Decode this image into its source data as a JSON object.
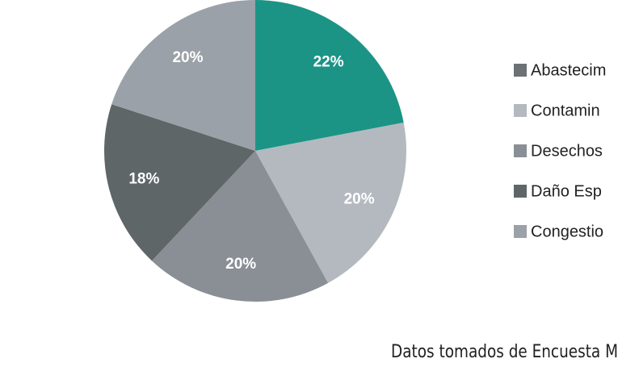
{
  "chart_data": {
    "type": "pie",
    "categories": [
      "Abastecim",
      "Contamin",
      "Desechos",
      "Daño Esp",
      "Congestio"
    ],
    "values": [
      22,
      20,
      20,
      18,
      20
    ],
    "value_labels": [
      "22%",
      "20%",
      "20%",
      "18%",
      "20%"
    ],
    "colors": [
      "#1b9485",
      "#b4b9c0",
      "#898f95",
      "#5e6668",
      "#9ba1a8"
    ],
    "legend_colors": [
      "#6b7174",
      "#b4b9c0",
      "#898f95",
      "#5e6668",
      "#9ba1a8"
    ],
    "legend": "right",
    "source": "Datos tomados de Encuesta M"
  }
}
